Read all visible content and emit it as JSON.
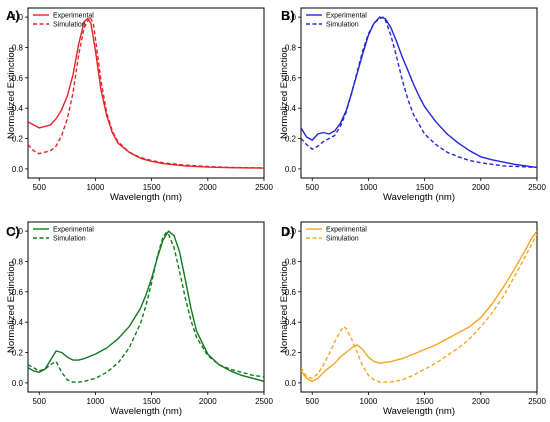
{
  "chart_data": [
    {
      "type": "line",
      "panel_label": "A)",
      "xlabel": "Wavelength (nm)",
      "ylabel": "Normalized Extinction",
      "xlim": [
        400,
        2500
      ],
      "ylim": [
        -0.06,
        1.06
      ],
      "xticks": [
        500,
        1000,
        1500,
        2000,
        2500
      ],
      "yticks": [
        0.0,
        0.2,
        0.4,
        0.6,
        0.8,
        1.0
      ],
      "legend_position": "top-left",
      "series": [
        {
          "name": "Experimental",
          "style": "solid",
          "color": "#e8242a",
          "x": [
            400,
            450,
            500,
            550,
            600,
            650,
            700,
            750,
            800,
            850,
            900,
            930,
            960,
            1000,
            1050,
            1100,
            1150,
            1200,
            1300,
            1400,
            1500,
            1600,
            1800,
            2000,
            2200,
            2500
          ],
          "y": [
            0.31,
            0.29,
            0.27,
            0.28,
            0.29,
            0.33,
            0.39,
            0.48,
            0.62,
            0.82,
            0.97,
            0.99,
            0.96,
            0.78,
            0.52,
            0.35,
            0.24,
            0.17,
            0.11,
            0.07,
            0.05,
            0.035,
            0.02,
            0.012,
            0.008,
            0.005
          ]
        },
        {
          "name": "Simulation",
          "style": "dashed",
          "color": "#e8242a",
          "x": [
            400,
            450,
            500,
            550,
            600,
            650,
            700,
            750,
            800,
            850,
            900,
            950,
            980,
            1000,
            1050,
            1100,
            1150,
            1200,
            1300,
            1400,
            1500,
            1600,
            1800,
            2000,
            2200,
            2500
          ],
          "y": [
            0.16,
            0.12,
            0.1,
            0.11,
            0.12,
            0.15,
            0.22,
            0.33,
            0.5,
            0.75,
            0.93,
            1.0,
            0.96,
            0.86,
            0.58,
            0.37,
            0.25,
            0.18,
            0.11,
            0.075,
            0.055,
            0.04,
            0.025,
            0.016,
            0.01,
            0.006
          ]
        }
      ]
    },
    {
      "type": "line",
      "panel_label": "B)",
      "xlabel": "Wavelength (nm)",
      "ylabel": "Normalized Extinction",
      "xlim": [
        400,
        2500
      ],
      "ylim": [
        -0.06,
        1.06
      ],
      "xticks": [
        500,
        1000,
        1500,
        2000,
        2500
      ],
      "yticks": [
        0.0,
        0.2,
        0.4,
        0.6,
        0.8,
        1.0
      ],
      "legend_position": "top-left",
      "series": [
        {
          "name": "Experimental",
          "style": "solid",
          "color": "#2327d9",
          "x": [
            400,
            450,
            500,
            550,
            600,
            650,
            700,
            750,
            800,
            850,
            900,
            950,
            1000,
            1050,
            1100,
            1150,
            1200,
            1250,
            1300,
            1350,
            1400,
            1450,
            1500,
            1600,
            1700,
            1800,
            1900,
            2000,
            2100,
            2200,
            2300,
            2400,
            2500
          ],
          "y": [
            0.27,
            0.21,
            0.19,
            0.23,
            0.24,
            0.23,
            0.25,
            0.3,
            0.38,
            0.5,
            0.63,
            0.76,
            0.88,
            0.96,
            1.0,
            0.99,
            0.93,
            0.84,
            0.74,
            0.65,
            0.56,
            0.48,
            0.41,
            0.31,
            0.23,
            0.17,
            0.12,
            0.08,
            0.06,
            0.045,
            0.03,
            0.02,
            0.01
          ]
        },
        {
          "name": "Simulation",
          "style": "dashed",
          "color": "#2327d9",
          "x": [
            400,
            450,
            500,
            550,
            600,
            650,
            700,
            750,
            800,
            850,
            900,
            950,
            1000,
            1050,
            1100,
            1130,
            1150,
            1200,
            1250,
            1300,
            1350,
            1400,
            1500,
            1600,
            1700,
            1800,
            1900,
            2000,
            2200,
            2500
          ],
          "y": [
            0.2,
            0.16,
            0.13,
            0.15,
            0.18,
            0.2,
            0.22,
            0.28,
            0.37,
            0.5,
            0.64,
            0.78,
            0.89,
            0.96,
            0.99,
            1.0,
            0.98,
            0.88,
            0.74,
            0.59,
            0.46,
            0.36,
            0.23,
            0.16,
            0.11,
            0.08,
            0.055,
            0.04,
            0.02,
            0.01
          ]
        }
      ]
    },
    {
      "type": "line",
      "panel_label": "C)",
      "xlabel": "Wavelength (nm)",
      "ylabel": "Normalized Extinction",
      "xlim": [
        400,
        2500
      ],
      "ylim": [
        -0.06,
        1.06
      ],
      "xticks": [
        500,
        1000,
        1500,
        2000,
        2500
      ],
      "yticks": [
        0.0,
        0.2,
        0.4,
        0.6,
        0.8,
        1.0
      ],
      "legend_position": "top-left",
      "series": [
        {
          "name": "Experimental",
          "style": "solid",
          "color": "#127a1f",
          "x": [
            400,
            450,
            500,
            550,
            600,
            650,
            700,
            750,
            800,
            850,
            900,
            1000,
            1100,
            1200,
            1300,
            1400,
            1450,
            1500,
            1550,
            1600,
            1650,
            1700,
            1750,
            1800,
            1850,
            1900,
            2000,
            2100,
            2200,
            2300,
            2400,
            2500
          ],
          "y": [
            0.1,
            0.08,
            0.07,
            0.09,
            0.15,
            0.21,
            0.2,
            0.17,
            0.15,
            0.15,
            0.16,
            0.19,
            0.23,
            0.29,
            0.37,
            0.49,
            0.58,
            0.69,
            0.82,
            0.94,
            1.0,
            0.97,
            0.86,
            0.68,
            0.49,
            0.34,
            0.19,
            0.12,
            0.08,
            0.05,
            0.03,
            0.01
          ]
        },
        {
          "name": "Simulation",
          "style": "dashed",
          "color": "#127a1f",
          "x": [
            400,
            450,
            500,
            550,
            600,
            650,
            700,
            750,
            800,
            850,
            900,
            1000,
            1100,
            1200,
            1300,
            1400,
            1450,
            1500,
            1550,
            1600,
            1630,
            1650,
            1700,
            1750,
            1800,
            1850,
            1900,
            2000,
            2100,
            2200,
            2300,
            2400,
            2500
          ],
          "y": [
            0.12,
            0.1,
            0.08,
            0.09,
            0.12,
            0.14,
            0.07,
            0.02,
            0.005,
            0.005,
            0.01,
            0.03,
            0.07,
            0.13,
            0.23,
            0.39,
            0.51,
            0.66,
            0.83,
            0.96,
            0.99,
            0.98,
            0.89,
            0.73,
            0.56,
            0.41,
            0.3,
            0.18,
            0.12,
            0.09,
            0.07,
            0.05,
            0.04
          ]
        }
      ]
    },
    {
      "type": "line",
      "panel_label": "D)",
      "xlabel": "Wavelength (nm)",
      "ylabel": "Normalized Extinction",
      "xlim": [
        400,
        2500
      ],
      "ylim": [
        -0.06,
        1.06
      ],
      "xticks": [
        500,
        1000,
        1500,
        2000,
        2500
      ],
      "yticks": [
        0.0,
        0.2,
        0.4,
        0.6,
        0.8,
        1.0
      ],
      "legend_position": "top-left",
      "series": [
        {
          "name": "Experimental",
          "style": "solid",
          "color": "#f5a623",
          "x": [
            400,
            450,
            500,
            550,
            600,
            650,
            700,
            750,
            800,
            850,
            900,
            950,
            1000,
            1050,
            1100,
            1200,
            1300,
            1400,
            1500,
            1600,
            1700,
            1800,
            1900,
            2000,
            2100,
            2200,
            2300,
            2400,
            2450,
            2500
          ],
          "y": [
            0.08,
            0.03,
            0.01,
            0.03,
            0.07,
            0.1,
            0.13,
            0.17,
            0.2,
            0.23,
            0.25,
            0.22,
            0.17,
            0.14,
            0.13,
            0.14,
            0.16,
            0.19,
            0.22,
            0.25,
            0.29,
            0.33,
            0.37,
            0.43,
            0.52,
            0.63,
            0.75,
            0.88,
            0.95,
            1.0
          ]
        },
        {
          "name": "Simulation",
          "style": "dashed",
          "color": "#f5a623",
          "x": [
            400,
            450,
            500,
            550,
            600,
            650,
            700,
            750,
            780,
            800,
            850,
            900,
            950,
            1000,
            1050,
            1100,
            1200,
            1300,
            1400,
            1500,
            1600,
            1700,
            1800,
            1900,
            2000,
            2100,
            2200,
            2300,
            2400,
            2500
          ],
          "y": [
            0.1,
            0.04,
            0.03,
            0.06,
            0.12,
            0.19,
            0.27,
            0.34,
            0.37,
            0.36,
            0.29,
            0.2,
            0.11,
            0.05,
            0.02,
            0.005,
            0.005,
            0.02,
            0.05,
            0.09,
            0.13,
            0.18,
            0.23,
            0.29,
            0.37,
            0.46,
            0.57,
            0.7,
            0.84,
            0.98
          ]
        }
      ]
    }
  ]
}
